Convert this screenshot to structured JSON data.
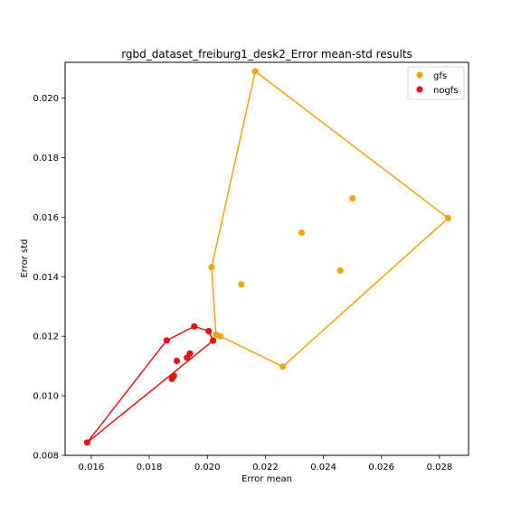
{
  "chart_data": {
    "type": "scatter",
    "title": "rgbd_dataset_freiburg1_desk2_Error mean-std results",
    "xlabel": "Error mean",
    "ylabel": "Error std",
    "xlim": [
      0.0151,
      0.029
    ],
    "ylim": [
      0.008,
      0.0212
    ],
    "xticks": [
      0.016,
      0.018,
      0.02,
      0.022,
      0.024,
      0.026,
      0.028
    ],
    "yticks": [
      0.008,
      0.01,
      0.012,
      0.014,
      0.016,
      0.018,
      0.02
    ],
    "xtick_labels": [
      "0.016",
      "0.018",
      "0.020",
      "0.022",
      "0.024",
      "0.026",
      "0.028"
    ],
    "ytick_labels": [
      "0.008",
      "0.010",
      "0.012",
      "0.014",
      "0.016",
      "0.018",
      "0.020"
    ],
    "grid": false,
    "legend_position": "top-right",
    "series": [
      {
        "name": "gfs",
        "color": "#f5a30f",
        "points": [
          [
            0.02165,
            0.0209
          ],
          [
            0.0283,
            0.01597
          ],
          [
            0.025,
            0.01663
          ],
          [
            0.02325,
            0.01548
          ],
          [
            0.02458,
            0.01421
          ],
          [
            0.02015,
            0.01432
          ],
          [
            0.02117,
            0.01374
          ],
          [
            0.0203,
            0.01205
          ],
          [
            0.02045,
            0.012
          ],
          [
            0.0226,
            0.01098
          ]
        ],
        "hull": [
          [
            0.02165,
            0.0209
          ],
          [
            0.0283,
            0.01597
          ],
          [
            0.0226,
            0.01098
          ],
          [
            0.02045,
            0.012
          ],
          [
            0.0203,
            0.01205
          ],
          [
            0.02015,
            0.01432
          ],
          [
            0.02165,
            0.0209
          ]
        ]
      },
      {
        "name": "nogfs",
        "color": "#e31414",
        "points": [
          [
            0.01586,
            0.00843
          ],
          [
            0.0186,
            0.01186
          ],
          [
            0.01955,
            0.01233
          ],
          [
            0.02005,
            0.01217
          ],
          [
            0.0202,
            0.01185
          ],
          [
            0.0194,
            0.01142
          ],
          [
            0.0193,
            0.01128
          ],
          [
            0.01895,
            0.01117
          ],
          [
            0.01885,
            0.01067
          ],
          [
            0.01878,
            0.01057
          ]
        ],
        "hull": [
          [
            0.01586,
            0.00843
          ],
          [
            0.0186,
            0.01186
          ],
          [
            0.01955,
            0.01233
          ],
          [
            0.02005,
            0.01217
          ],
          [
            0.0202,
            0.01185
          ],
          [
            0.01586,
            0.00843
          ]
        ]
      }
    ]
  }
}
